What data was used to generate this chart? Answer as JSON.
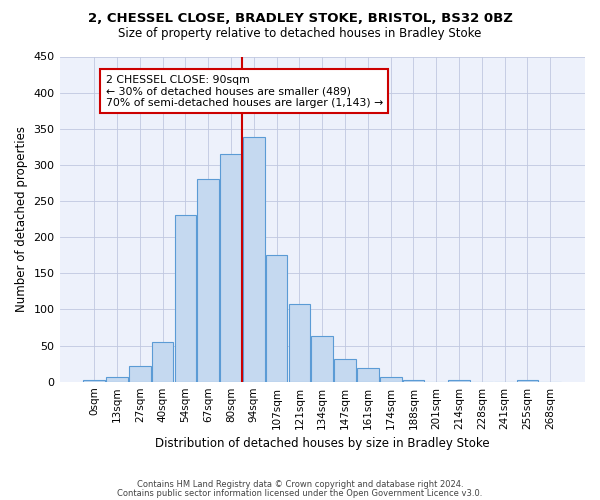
{
  "title": "2, CHESSEL CLOSE, BRADLEY STOKE, BRISTOL, BS32 0BZ",
  "subtitle": "Size of property relative to detached houses in Bradley Stoke",
  "xlabel": "Distribution of detached houses by size in Bradley Stoke",
  "ylabel": "Number of detached properties",
  "bar_color": "#c5d9f0",
  "bar_edge_color": "#5b9bd5",
  "bin_labels": [
    "0sqm",
    "13sqm",
    "27sqm",
    "40sqm",
    "54sqm",
    "67sqm",
    "80sqm",
    "94sqm",
    "107sqm",
    "121sqm",
    "134sqm",
    "147sqm",
    "161sqm",
    "174sqm",
    "188sqm",
    "201sqm",
    "214sqm",
    "228sqm",
    "241sqm",
    "255sqm",
    "268sqm"
  ],
  "bar_heights": [
    3,
    7,
    22,
    55,
    230,
    280,
    315,
    338,
    175,
    108,
    63,
    32,
    19,
    7,
    3,
    0,
    3,
    0,
    0,
    3,
    0
  ],
  "ylim": [
    0,
    450
  ],
  "yticks": [
    0,
    50,
    100,
    150,
    200,
    250,
    300,
    350,
    400,
    450
  ],
  "vline_color": "#cc0000",
  "annotation_title": "2 CHESSEL CLOSE: 90sqm",
  "annotation_line1": "← 30% of detached houses are smaller (489)",
  "annotation_line2": "70% of semi-detached houses are larger (1,143) →",
  "annotation_box_color": "#ffffff",
  "annotation_border_color": "#cc0000",
  "footer1": "Contains HM Land Registry data © Crown copyright and database right 2024.",
  "footer2": "Contains public sector information licensed under the Open Government Licence v3.0.",
  "background_color": "#edf1fb",
  "plot_background": "#ffffff"
}
